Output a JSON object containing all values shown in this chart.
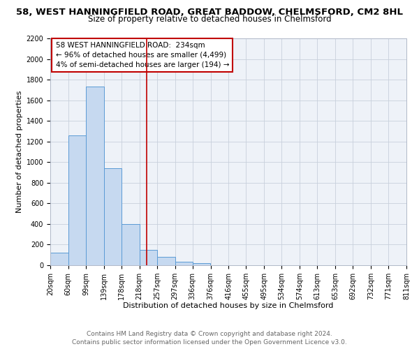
{
  "title_line1": "58, WEST HANNINGFIELD ROAD, GREAT BADDOW, CHELMSFORD, CM2 8HL",
  "title_line2": "Size of property relative to detached houses in Chelmsford",
  "xlabel": "Distribution of detached houses by size in Chelmsford",
  "ylabel": "Number of detached properties",
  "bar_left_edges": [
    20,
    60,
    99,
    139,
    178,
    218,
    257,
    297,
    336,
    376,
    416,
    455,
    495,
    534,
    574,
    613,
    653,
    692,
    732,
    771
  ],
  "bar_widths": [
    40,
    39,
    40,
    39,
    40,
    39,
    40,
    39,
    40,
    40,
    39,
    40,
    39,
    40,
    39,
    40,
    39,
    40,
    39,
    40
  ],
  "bar_heights": [
    120,
    1260,
    1730,
    940,
    400,
    150,
    80,
    35,
    20,
    0,
    0,
    0,
    0,
    0,
    0,
    0,
    0,
    0,
    0,
    0
  ],
  "bar_color": "#c6d9f0",
  "bar_edge_color": "#5b9bd5",
  "vline_x": 234,
  "vline_color": "#c00000",
  "ylim": [
    0,
    2200
  ],
  "yticks": [
    0,
    200,
    400,
    600,
    800,
    1000,
    1200,
    1400,
    1600,
    1800,
    2000,
    2200
  ],
  "xtick_labels": [
    "20sqm",
    "60sqm",
    "99sqm",
    "139sqm",
    "178sqm",
    "218sqm",
    "257sqm",
    "297sqm",
    "336sqm",
    "376sqm",
    "416sqm",
    "455sqm",
    "495sqm",
    "534sqm",
    "574sqm",
    "613sqm",
    "653sqm",
    "692sqm",
    "732sqm",
    "771sqm",
    "811sqm"
  ],
  "xtick_positions": [
    20,
    60,
    99,
    139,
    178,
    218,
    257,
    297,
    336,
    376,
    416,
    455,
    495,
    534,
    574,
    613,
    653,
    692,
    732,
    771,
    811
  ],
  "annotation_box_text_line1": "58 WEST HANNINGFIELD ROAD:  234sqm",
  "annotation_box_text_line2": "← 96% of detached houses are smaller (4,499)",
  "annotation_box_text_line3": "4% of semi-detached houses are larger (194) →",
  "annotation_box_color": "#c00000",
  "grid_color": "#c8d0dc",
  "bg_color": "#eef2f8",
  "footer_line1": "Contains HM Land Registry data © Crown copyright and database right 2024.",
  "footer_line2": "Contains public sector information licensed under the Open Government Licence v3.0.",
  "title_fontsize": 9.5,
  "subtitle_fontsize": 8.5,
  "axis_label_fontsize": 8,
  "tick_fontsize": 7,
  "annotation_fontsize": 7.5,
  "footer_fontsize": 6.5
}
